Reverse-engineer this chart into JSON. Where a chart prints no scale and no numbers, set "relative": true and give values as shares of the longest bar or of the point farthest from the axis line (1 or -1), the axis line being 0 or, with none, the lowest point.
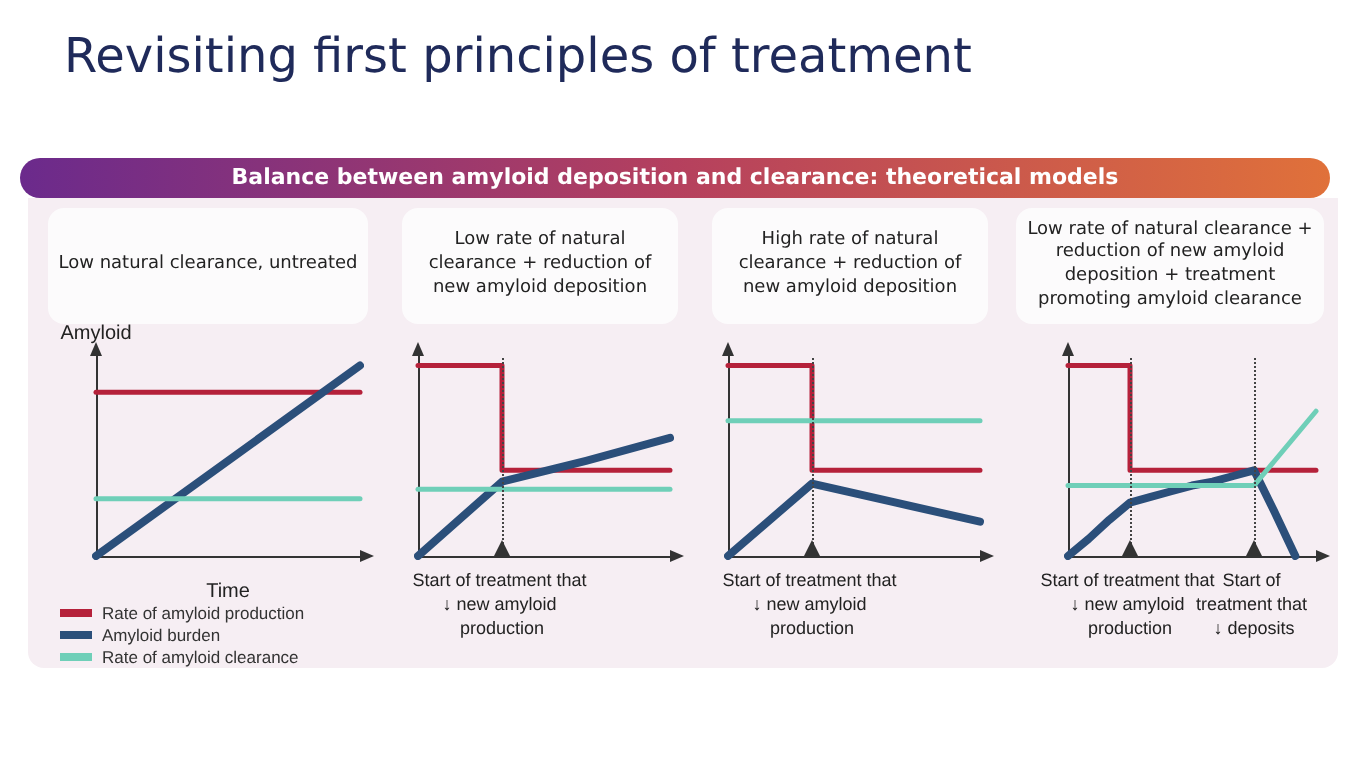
{
  "chart_data": [
    {
      "type": "line",
      "title": "Low natural clearance, untreated",
      "xlabel": "Time",
      "ylabel": "Amyloid",
      "relative": true,
      "marker": "none",
      "legend": "bottom",
      "annotations": [
        "Revisiting first principles of treatment",
        "Balance between amyloid deposition and clearance: theoretical models"
      ],
      "categories": [
        null,
        null
      ],
      "series": [
        {
          "name": "Rate of amyloid production",
          "color": "#b5213a",
          "values": [
            0.86,
            0.86
          ]
        },
        {
          "name": "Amyloid burden",
          "color": "#2b4f7a",
          "values": [
            0,
            1
          ]
        },
        {
          "name": "Rate of amyloid clearance",
          "color": "#6fcfb8",
          "values": [
            0.3,
            0.3
          ]
        }
      ]
    },
    {
      "type": "line",
      "title": "Low rate of natural clearance + reduction of new amyloid deposition",
      "relative": true,
      "marker": "none",
      "categories": [
        null,
        null,
        null,
        null
      ],
      "annotations": [
        "Start of treatment that ↓ new amyloid production"
      ],
      "series": [
        {
          "type": "step",
          "color": "#b5213a",
          "values": [
            1,
            1,
            0.45,
            0.45
          ]
        },
        {
          "color": "#2b4f7a",
          "values": [
            0,
            0.39,
            0.5,
            0.62
          ]
        },
        {
          "color": "#6fcfb8",
          "values": [
            0.35,
            0.35,
            0.35,
            0.35
          ]
        }
      ]
    },
    {
      "type": "line",
      "title": "High rate of natural clearance + reduction of new amyloid deposition",
      "relative": true,
      "marker": "none",
      "categories": [
        null,
        null,
        null,
        null
      ],
      "annotations": [
        "Start of treatment that ↓ new amyloid production"
      ],
      "series": [
        {
          "type": "step",
          "color": "#b5213a",
          "values": [
            1,
            1,
            0.45,
            0.45
          ]
        },
        {
          "color": "#2b4f7a",
          "values": [
            0,
            0.38,
            0.28,
            0.18
          ]
        },
        {
          "color": "#6fcfb8",
          "values": [
            0.71,
            0.71,
            0.71,
            0.71
          ]
        }
      ]
    },
    {
      "type": "line",
      "title": "Low rate of natural clearance + reduction of new amyloid deposition + treatment promoting amyloid clearance",
      "relative": true,
      "marker": "none",
      "categories": [
        null,
        null,
        null,
        null,
        null,
        null,
        null,
        null,
        null,
        null,
        null,
        null,
        null
      ],
      "annotations": [
        "Start of treatment that ↓ new amyloid production",
        "Start of treatment that ↓ deposits"
      ],
      "series": [
        {
          "type": "step",
          "color": "#b5213a",
          "values": [
            1,
            1,
            1,
            1,
            0.45,
            0.45,
            0.45,
            0.45,
            0.45,
            0.45,
            0.45,
            0.45,
            0.45
          ]
        },
        {
          "color": "#2b4f7a",
          "values": [
            0,
            0.09,
            0.19,
            0.28,
            0.31,
            0.34,
            0.37,
            0.39,
            0.42,
            0.45,
            0.23,
            0,
            null
          ]
        },
        {
          "color": "#6fcfb8",
          "values": [
            0.37,
            0.37,
            0.37,
            0.37,
            0.37,
            0.37,
            0.37,
            0.37,
            0.37,
            0.37,
            0.5,
            0.63,
            0.76
          ]
        }
      ]
    }
  ]
}
